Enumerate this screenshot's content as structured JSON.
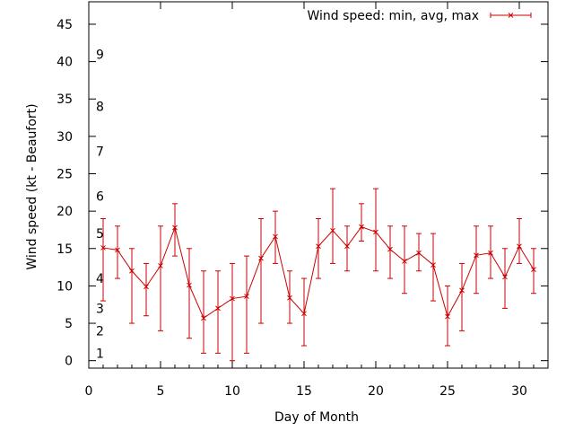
{
  "chart_data": {
    "type": "line",
    "title": "",
    "xlabel": "Day of Month",
    "ylabel": "Wind speed (kt - Beaufort)",
    "xlim": [
      0,
      32
    ],
    "ylim": [
      -1,
      48
    ],
    "x_ticks": [
      0,
      5,
      10,
      15,
      20,
      25,
      30
    ],
    "y_ticks": [
      0,
      5,
      10,
      15,
      20,
      25,
      30,
      35,
      40,
      45
    ],
    "grid": false,
    "legend_position": "top-right",
    "beaufort_labels": [
      {
        "label": "1",
        "value": 1
      },
      {
        "label": "2",
        "value": 4
      },
      {
        "label": "3",
        "value": 7
      },
      {
        "label": "4",
        "value": 11
      },
      {
        "label": "5",
        "value": 17
      },
      {
        "label": "6",
        "value": 22
      },
      {
        "label": "7",
        "value": 28
      },
      {
        "label": "8",
        "value": 34
      },
      {
        "label": "9",
        "value": 41
      }
    ],
    "series": [
      {
        "name": "Wind speed: min, avg, max",
        "color": "#cc0000",
        "x": [
          1,
          2,
          3,
          4,
          5,
          6,
          7,
          8,
          9,
          10,
          11,
          12,
          13,
          14,
          15,
          16,
          17,
          18,
          19,
          20,
          21,
          22,
          23,
          24,
          25,
          26,
          27,
          28,
          29,
          30,
          31
        ],
        "avg": [
          15.1,
          14.8,
          12.0,
          9.9,
          12.7,
          17.8,
          10.1,
          5.7,
          7.0,
          8.3,
          8.6,
          13.7,
          16.6,
          8.4,
          6.3,
          15.3,
          17.4,
          15.3,
          17.9,
          17.2,
          14.9,
          13.3,
          14.4,
          12.8,
          5.9,
          9.4,
          14.1,
          14.4,
          11.2,
          15.3,
          12.2
        ],
        "min": [
          8,
          11,
          5,
          6,
          4,
          14,
          3,
          1,
          1,
          0,
          1,
          5,
          13,
          5,
          2,
          11,
          13,
          12,
          16,
          12,
          11,
          9,
          12,
          8,
          2,
          4,
          9,
          11,
          7,
          13,
          9
        ],
        "max": [
          19,
          18,
          15,
          13,
          18,
          21,
          15,
          12,
          12,
          13,
          14,
          19,
          20,
          12,
          11,
          19,
          23,
          18,
          21,
          23,
          18,
          18,
          17,
          17,
          10,
          13,
          18,
          18,
          15,
          19,
          15
        ]
      }
    ]
  }
}
